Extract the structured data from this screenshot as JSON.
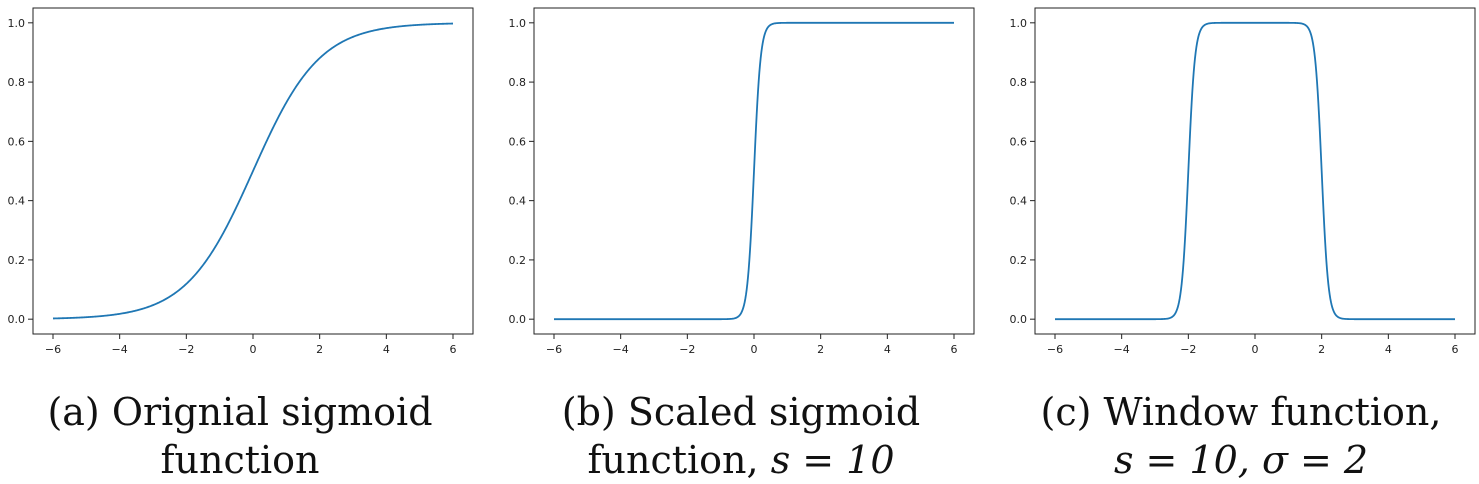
{
  "chart_data": [
    {
      "type": "line",
      "function": "sigmoid",
      "params": {
        "s": 1
      },
      "x_range": [
        -6,
        6
      ],
      "xlim": [
        -6.6,
        6.6
      ],
      "ylim": [
        -0.05,
        1.05
      ],
      "xticks": [
        -6,
        -4,
        -2,
        0,
        2,
        4,
        6
      ],
      "yticks": [
        0.0,
        0.2,
        0.4,
        0.6,
        0.8,
        1.0
      ],
      "xtick_labels": [
        "−6",
        "−4",
        "−2",
        "0",
        "2",
        "4",
        "6"
      ],
      "ytick_labels": [
        "0.0",
        "0.2",
        "0.4",
        "0.6",
        "0.8",
        "1.0"
      ],
      "line_color": "#1f77b4",
      "grid": false,
      "caption": {
        "label": "(a) Orignial sigmoid",
        "line2": "function",
        "math": ""
      }
    },
    {
      "type": "line",
      "function": "scaled_sigmoid",
      "params": {
        "s": 10
      },
      "x_range": [
        -6,
        6
      ],
      "xlim": [
        -6.6,
        6.6
      ],
      "ylim": [
        -0.05,
        1.05
      ],
      "xticks": [
        -6,
        -4,
        -2,
        0,
        2,
        4,
        6
      ],
      "yticks": [
        0.0,
        0.2,
        0.4,
        0.6,
        0.8,
        1.0
      ],
      "xtick_labels": [
        "−6",
        "−4",
        "−2",
        "0",
        "2",
        "4",
        "6"
      ],
      "ytick_labels": [
        "0.0",
        "0.2",
        "0.4",
        "0.6",
        "0.8",
        "1.0"
      ],
      "line_color": "#1f77b4",
      "grid": false,
      "caption": {
        "label": "(b) Scaled sigmoid",
        "line2": "function, ",
        "math": "s = 10"
      }
    },
    {
      "type": "line",
      "function": "window",
      "params": {
        "s": 10,
        "sigma": 2
      },
      "x_range": [
        -6,
        6
      ],
      "xlim": [
        -6.6,
        6.6
      ],
      "ylim": [
        -0.05,
        1.05
      ],
      "xticks": [
        -6,
        -4,
        -2,
        0,
        2,
        4,
        6
      ],
      "yticks": [
        0.0,
        0.2,
        0.4,
        0.6,
        0.8,
        1.0
      ],
      "xtick_labels": [
        "−6",
        "−4",
        "−2",
        "0",
        "2",
        "4",
        "6"
      ],
      "ytick_labels": [
        "0.0",
        "0.2",
        "0.4",
        "0.6",
        "0.8",
        "1.0"
      ],
      "line_color": "#1f77b4",
      "grid": false,
      "caption": {
        "label": "(c) Window function,",
        "line2": "",
        "math": "s = 10, σ = 2"
      }
    }
  ]
}
